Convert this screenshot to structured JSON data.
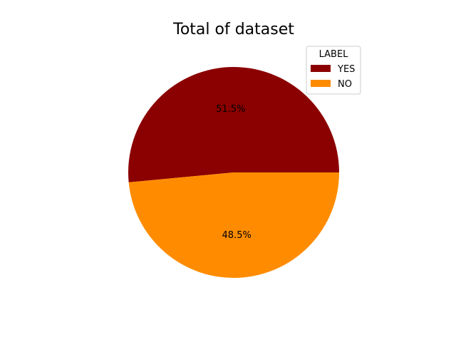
{
  "chart_data": {
    "type": "pie",
    "title": "Total of dataset",
    "legend": {
      "title": "LABEL",
      "placement": "upper-right"
    },
    "slices": [
      {
        "label": "YES",
        "value": 51.5,
        "pct_label": "51.5%",
        "color": "#8b0000"
      },
      {
        "label": "NO",
        "value": 48.5,
        "pct_label": "48.5%",
        "color": "#ff8c00"
      }
    ],
    "start_angle_deg": 0,
    "direction": "counterclockwise"
  }
}
